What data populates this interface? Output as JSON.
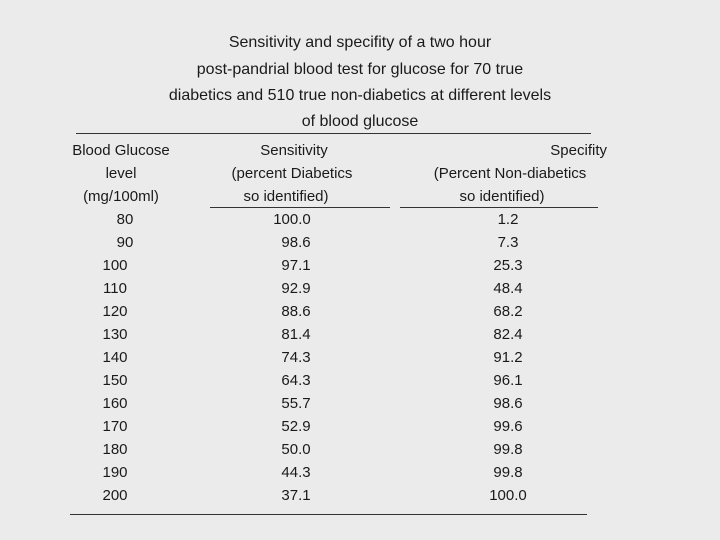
{
  "title_lines": [
    "Sensitivity and specifity of a two hour",
    "post-pandrial blood test for glucose for 70 true",
    "diabetics and 510 true non-diabetics at different levels",
    "of blood glucose"
  ],
  "headers": {
    "glucose": [
      "Blood Glucose",
      "level",
      "(mg/100ml)"
    ],
    "sensitivity": [
      "Sensitivity",
      "(percent Diabetics",
      "so identified)"
    ],
    "specificity": [
      "Specifity",
      "(Percent Non-diabetics",
      "so identified)"
    ]
  },
  "rows": [
    {
      "glucose": "80",
      "sensitivity": "100.0",
      "specificity": "1.2"
    },
    {
      "glucose": "90",
      "sensitivity": "98.6",
      "specificity": "7.3"
    },
    {
      "glucose": "100",
      "sensitivity": "97.1",
      "specificity": "25.3"
    },
    {
      "glucose": "110",
      "sensitivity": "92.9",
      "specificity": "48.4"
    },
    {
      "glucose": "120",
      "sensitivity": "88.6",
      "specificity": "68.2"
    },
    {
      "glucose": "130",
      "sensitivity": "81.4",
      "specificity": "82.4"
    },
    {
      "glucose": "140",
      "sensitivity": "74.3",
      "specificity": "91.2"
    },
    {
      "glucose": "150",
      "sensitivity": "64.3",
      "specificity": "96.1"
    },
    {
      "glucose": "160",
      "sensitivity": "55.7",
      "specificity": "98.6"
    },
    {
      "glucose": "170",
      "sensitivity": "52.9",
      "specificity": "99.6"
    },
    {
      "glucose": "180",
      "sensitivity": "50.0",
      "specificity": "99.8"
    },
    {
      "glucose": "190",
      "sensitivity": "44.3",
      "specificity": "99.8"
    },
    {
      "glucose": "200",
      "sensitivity": "37.1",
      "specificity": "100.0"
    }
  ]
}
